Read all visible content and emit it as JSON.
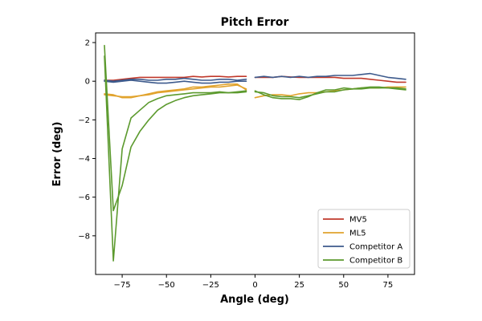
{
  "chart_data": {
    "type": "line",
    "title": "Pitch Error",
    "xlabel": "Angle (deg)",
    "ylabel": "Error (deg)",
    "xlim": [
      -90,
      90
    ],
    "ylim": [
      -10,
      2.5
    ],
    "xticks": [
      -75,
      -50,
      -25,
      0,
      25,
      50,
      75
    ],
    "xtick_labels": [
      "−75",
      "−50",
      "−25",
      "0",
      "25",
      "50",
      "75"
    ],
    "yticks": [
      -8,
      -6,
      -4,
      -2,
      0,
      2
    ],
    "ytick_labels": [
      "−8",
      "−6",
      "−4",
      "−2",
      "0",
      "2"
    ],
    "grid": false,
    "legend_position": "bottom-right",
    "series": [
      {
        "name": "MV5",
        "color": "#c0392b",
        "segments": [
          {
            "x": [
              -85,
              -80,
              -75,
              -70,
              -65,
              -60,
              -55,
              -50,
              -45,
              -40,
              -35,
              -30,
              -25,
              -20,
              -15,
              -10,
              -5
            ],
            "y": [
              0.05,
              0.05,
              0.1,
              0.15,
              0.2,
              0.2,
              0.2,
              0.2,
              0.2,
              0.2,
              0.25,
              0.22,
              0.25,
              0.25,
              0.22,
              0.25,
              0.25
            ]
          },
          {
            "x": [
              0,
              5,
              10,
              15,
              20,
              25,
              30,
              35,
              40,
              45,
              50,
              55,
              60,
              65,
              70,
              75,
              80,
              85
            ],
            "y": [
              0.2,
              0.2,
              0.2,
              0.25,
              0.22,
              0.2,
              0.2,
              0.2,
              0.2,
              0.2,
              0.15,
              0.15,
              0.15,
              0.1,
              0.05,
              0.0,
              -0.05,
              -0.05
            ]
          }
        ]
      },
      {
        "name": "ML5",
        "color": "#e1a32d",
        "segments": [
          {
            "x": [
              -85,
              -80,
              -75,
              -70,
              -65,
              -60,
              -55,
              -50,
              -45,
              -40,
              -35,
              -30,
              -25,
              -20,
              -15,
              -10,
              -5
            ],
            "y": [
              -0.7,
              -0.75,
              -0.8,
              -0.8,
              -0.75,
              -0.7,
              -0.6,
              -0.55,
              -0.5,
              -0.45,
              -0.4,
              -0.35,
              -0.3,
              -0.3,
              -0.25,
              -0.2,
              -0.4
            ]
          },
          {
            "x": [
              -85,
              -80,
              -75,
              -70,
              -65,
              -60,
              -55,
              -50,
              -45,
              -40,
              -35,
              -30,
              -25,
              -20,
              -15,
              -10,
              -5
            ],
            "y": [
              -0.65,
              -0.7,
              -0.85,
              -0.85,
              -0.75,
              -0.65,
              -0.55,
              -0.5,
              -0.45,
              -0.4,
              -0.3,
              -0.3,
              -0.25,
              -0.2,
              -0.15,
              -0.15,
              -0.45
            ]
          },
          {
            "x": [
              0,
              5,
              10,
              15,
              20,
              25,
              30,
              35,
              40,
              45,
              50,
              55,
              60,
              65,
              70,
              75,
              80,
              85
            ],
            "y": [
              -0.85,
              -0.75,
              -0.7,
              -0.7,
              -0.75,
              -0.65,
              -0.6,
              -0.6,
              -0.55,
              -0.5,
              -0.45,
              -0.4,
              -0.35,
              -0.35,
              -0.35,
              -0.3,
              -0.3,
              -0.3
            ]
          }
        ]
      },
      {
        "name": "Competitor A",
        "color": "#3d5a8c",
        "segments": [
          {
            "x": [
              -85,
              -80,
              -75,
              -70,
              -65,
              -60,
              -55,
              -50,
              -45,
              -40,
              -35,
              -30,
              -25,
              -20,
              -15,
              -10,
              -5
            ],
            "y": [
              0.0,
              -0.05,
              0.0,
              0.05,
              0.0,
              -0.05,
              -0.1,
              -0.1,
              -0.05,
              0.0,
              -0.05,
              -0.1,
              -0.1,
              -0.05,
              -0.05,
              0.0,
              0.0
            ]
          },
          {
            "x": [
              -85,
              -80,
              -75,
              -70,
              -65,
              -60,
              -55,
              -50,
              -45,
              -40,
              -35,
              -30,
              -25,
              -20,
              -15,
              -10,
              -5
            ],
            "y": [
              0.05,
              0.0,
              0.05,
              0.1,
              0.1,
              0.05,
              0.05,
              0.1,
              0.1,
              0.15,
              0.1,
              0.05,
              0.05,
              0.1,
              0.1,
              0.05,
              0.1
            ]
          },
          {
            "x": [
              0,
              5,
              10,
              15,
              20,
              25,
              30,
              35,
              40,
              45,
              50,
              55,
              60,
              65,
              70,
              75,
              80,
              85
            ],
            "y": [
              0.2,
              0.25,
              0.2,
              0.25,
              0.2,
              0.25,
              0.2,
              0.25,
              0.25,
              0.3,
              0.3,
              0.3,
              0.35,
              0.4,
              0.3,
              0.2,
              0.15,
              0.1
            ]
          }
        ]
      },
      {
        "name": "Competitor B",
        "color": "#5c9a2e",
        "segments": [
          {
            "x": [
              -85,
              -80,
              -75,
              -70,
              -65,
              -60,
              -55,
              -50,
              -45,
              -40,
              -35,
              -30,
              -25,
              -20,
              -15,
              -10,
              -5
            ],
            "y": [
              1.85,
              -6.7,
              -5.4,
              -3.4,
              -2.6,
              -2.0,
              -1.5,
              -1.2,
              -1.0,
              -0.85,
              -0.75,
              -0.7,
              -0.65,
              -0.6,
              -0.6,
              -0.55,
              -0.5
            ]
          },
          {
            "x": [
              -85,
              -80,
              -75,
              -70,
              -65,
              -60,
              -55,
              -50,
              -45,
              -40,
              -35,
              -30,
              -25,
              -20,
              -15,
              -10,
              -5
            ],
            "y": [
              1.3,
              -9.3,
              -3.5,
              -1.9,
              -1.5,
              -1.1,
              -0.9,
              -0.75,
              -0.7,
              -0.65,
              -0.6,
              -0.6,
              -0.6,
              -0.55,
              -0.6,
              -0.6,
              -0.55
            ]
          },
          {
            "x": [
              0,
              5,
              10,
              15,
              20,
              25,
              30,
              35,
              40,
              45,
              50,
              55,
              60,
              65,
              70,
              75,
              80,
              85
            ],
            "y": [
              -0.55,
              -0.6,
              -0.75,
              -0.8,
              -0.8,
              -0.85,
              -0.75,
              -0.65,
              -0.55,
              -0.55,
              -0.45,
              -0.4,
              -0.4,
              -0.35,
              -0.35,
              -0.35,
              -0.35,
              -0.4
            ]
          },
          {
            "x": [
              0,
              5,
              10,
              15,
              20,
              25,
              30,
              35,
              40,
              45,
              50,
              55,
              60,
              65,
              70,
              75,
              80,
              85
            ],
            "y": [
              -0.5,
              -0.7,
              -0.85,
              -0.9,
              -0.9,
              -0.95,
              -0.8,
              -0.6,
              -0.45,
              -0.45,
              -0.35,
              -0.4,
              -0.35,
              -0.3,
              -0.3,
              -0.35,
              -0.4,
              -0.45
            ]
          }
        ]
      }
    ]
  }
}
